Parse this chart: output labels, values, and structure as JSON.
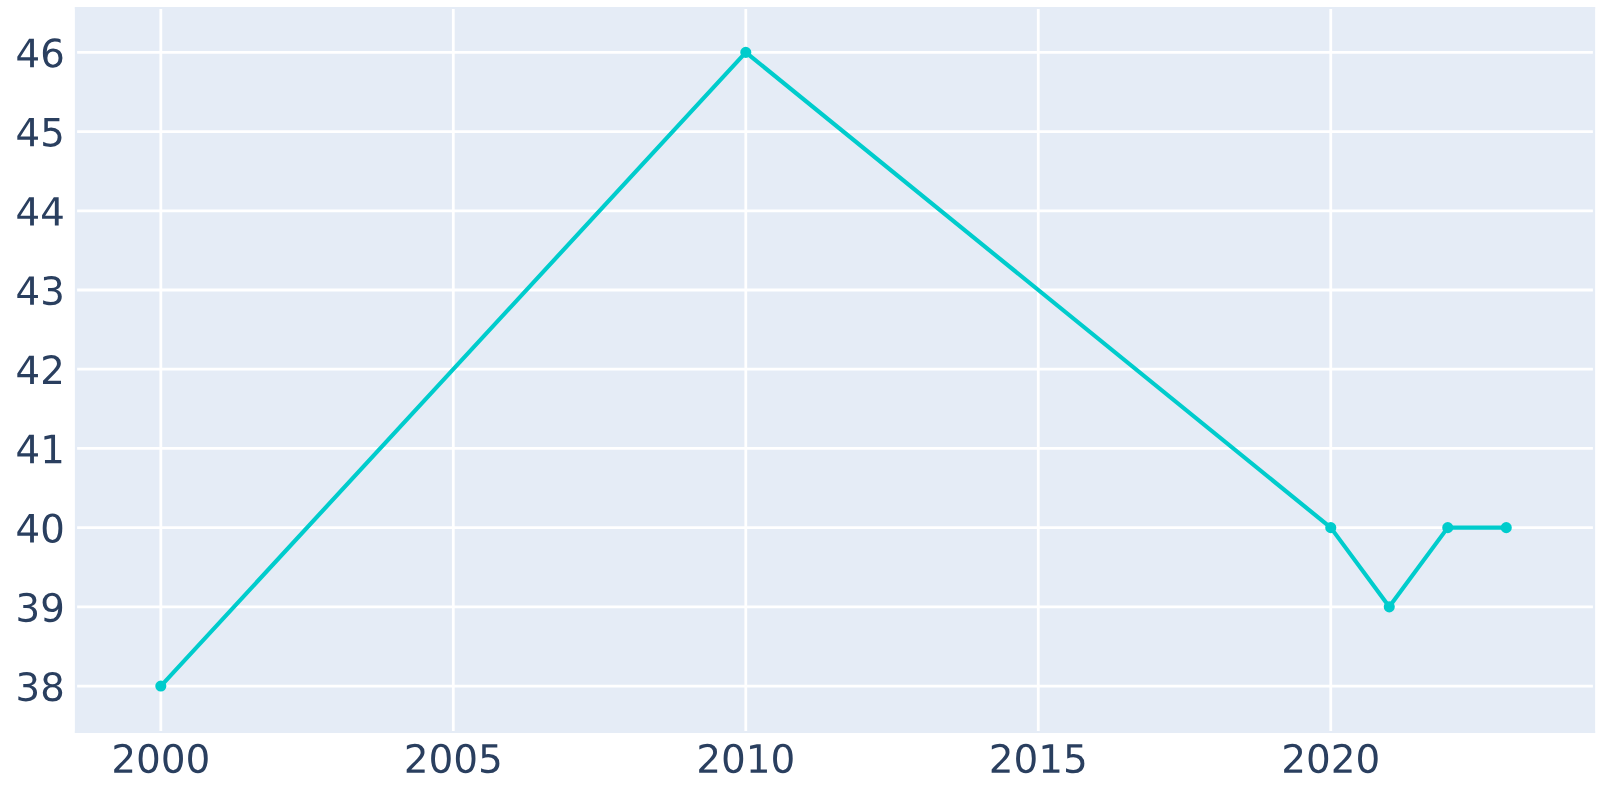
{
  "chart_data": {
    "type": "line",
    "x": [
      2000,
      2010,
      2020,
      2021,
      2022,
      2023
    ],
    "series": [
      {
        "color": "#00cccc",
        "values": [
          38,
          46,
          40,
          39,
          40,
          40
        ]
      }
    ],
    "xlim": [
      1998.55,
      2024.5
    ],
    "xticks": [
      2000,
      2005,
      2010,
      2015,
      2020
    ],
    "ylim": [
      37.42,
      46.56
    ],
    "yticks": [
      38,
      39,
      40,
      41,
      42,
      43,
      44,
      45,
      46
    ],
    "grid": true,
    "marker": "circle",
    "line_style": "solid"
  }
}
